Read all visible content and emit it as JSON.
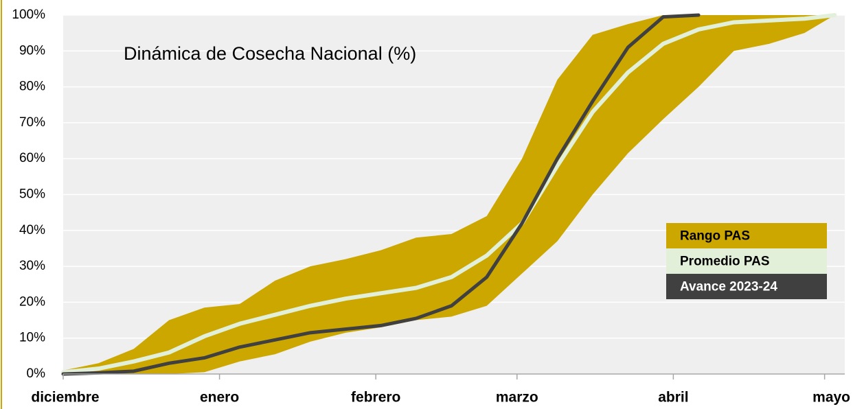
{
  "chart_data": {
    "type": "line",
    "title": "Dinámica de Cosecha Nacional (%)",
    "x": [
      0,
      7,
      14,
      21,
      28,
      35,
      42,
      49,
      56,
      63,
      70,
      77,
      84,
      91,
      98,
      105,
      112,
      119,
      126,
      133,
      140,
      147,
      153
    ],
    "xlim": [
      0,
      155
    ],
    "xticks": [
      {
        "value": 0,
        "label": "diciembre"
      },
      {
        "value": 31,
        "label": "enero"
      },
      {
        "value": 62,
        "label": "febrero"
      },
      {
        "value": 90,
        "label": "marzo"
      },
      {
        "value": 121,
        "label": "abril"
      },
      {
        "value": 151,
        "label": "mayo"
      }
    ],
    "ylim": [
      0,
      100
    ],
    "yticks": [
      {
        "value": 0,
        "label": "0%"
      },
      {
        "value": 10,
        "label": "10%"
      },
      {
        "value": 20,
        "label": "20%"
      },
      {
        "value": 30,
        "label": "30%"
      },
      {
        "value": 40,
        "label": "40%"
      },
      {
        "value": 50,
        "label": "50%"
      },
      {
        "value": 60,
        "label": "60%"
      },
      {
        "value": 70,
        "label": "70%"
      },
      {
        "value": 80,
        "label": "80%"
      },
      {
        "value": 90,
        "label": "90%"
      },
      {
        "value": 100,
        "label": "100%"
      }
    ],
    "grid": true,
    "legend": "right",
    "series": [
      {
        "name": "Rango PAS",
        "color": "#cca700",
        "label_color": "#000000",
        "upper": [
          1,
          3,
          7,
          15,
          18.5,
          19.5,
          26,
          30,
          32,
          34.5,
          38,
          39,
          44,
          60,
          82,
          94.5,
          97.5,
          100,
          100,
          100,
          100,
          100,
          100
        ],
        "lower": [
          0,
          0,
          0,
          0,
          0.5,
          3.5,
          5.5,
          9,
          11.5,
          13,
          15,
          16,
          19,
          28,
          37,
          50,
          61.5,
          71,
          80,
          90,
          92,
          95,
          100
        ]
      },
      {
        "name": "Promedio PAS",
        "color": "#e2f0d9",
        "label_color": "#000000",
        "values": [
          0.5,
          1.5,
          3.5,
          6,
          10.5,
          14,
          16.5,
          19,
          21,
          22.5,
          24,
          27,
          33,
          42,
          58,
          73,
          84,
          92,
          96,
          98,
          98.5,
          99,
          100
        ]
      },
      {
        "name": "Avance 2023-24",
        "color": "#404040",
        "label_color": "#ffffff",
        "values": [
          0,
          0.3,
          0.8,
          3,
          4.5,
          7.5,
          9.5,
          11.5,
          12.5,
          13.5,
          15.5,
          19,
          27,
          42,
          60,
          76,
          91,
          99.5,
          100,
          null,
          null,
          null,
          null
        ]
      }
    ]
  }
}
